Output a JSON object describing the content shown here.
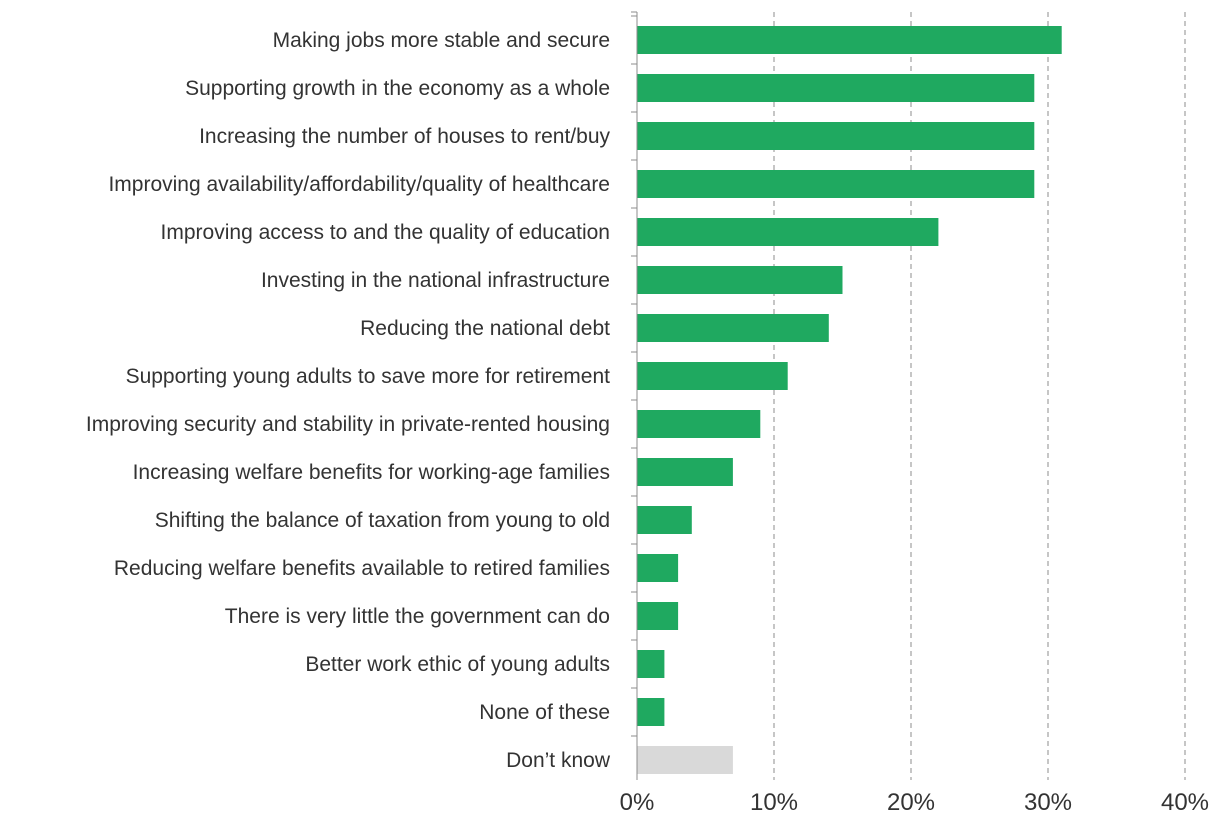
{
  "chart_data": {
    "type": "bar",
    "orientation": "horizontal",
    "title": "",
    "xlabel": "",
    "ylabel": "",
    "categories": [
      "Making jobs more stable and secure",
      "Supporting growth in the economy as a whole",
      "Increasing the number of houses to rent/buy",
      "Improving availability/affordability/quality of healthcare",
      "Improving access to and the quality of education",
      "Investing in the national infrastructure",
      "Reducing the national debt",
      "Supporting young adults to save more for retirement",
      "Improving security and stability in private-rented housing",
      "Increasing welfare benefits for working-age families",
      "Shifting the balance of taxation from young to old",
      "Reducing welfare benefits available to retired families",
      "There is very little the government can do",
      "Better work ethic of young adults",
      "None of these",
      "Don’t know"
    ],
    "values": [
      31,
      29,
      29,
      29,
      22,
      15,
      14,
      11,
      9,
      7,
      4,
      3,
      3,
      2,
      2,
      7
    ],
    "bar_colors": [
      "#1fa960",
      "#1fa960",
      "#1fa960",
      "#1fa960",
      "#1fa960",
      "#1fa960",
      "#1fa960",
      "#1fa960",
      "#1fa960",
      "#1fa960",
      "#1fa960",
      "#1fa960",
      "#1fa960",
      "#1fa960",
      "#1fa960",
      "#d9d9d9"
    ],
    "xlim": [
      0,
      40
    ],
    "xticks": [
      0,
      10,
      20,
      30,
      40
    ],
    "xtick_labels": [
      "0%",
      "10%",
      "20%",
      "30%",
      "40%"
    ],
    "grid": "vertical dashed",
    "legend": "none"
  }
}
